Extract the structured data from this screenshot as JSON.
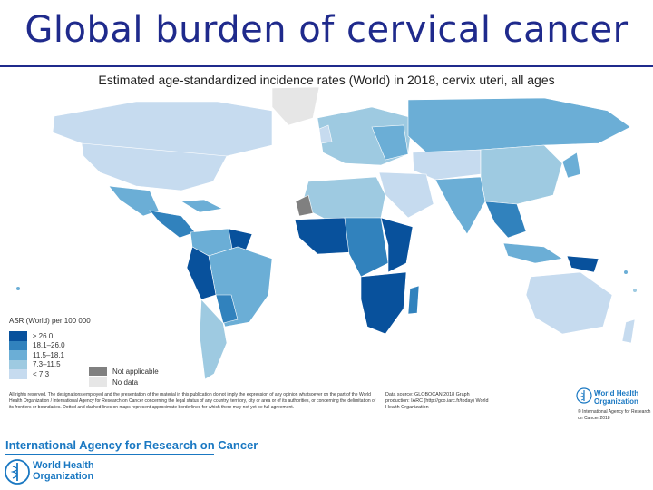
{
  "title": "Global burden of cervical cancer",
  "map": {
    "title": "Estimated age-standardized incidence rates (World) in 2018, cervix uteri, all ages",
    "legend_title": "ASR (World) per 100 000",
    "categories": [
      {
        "label": "≥ 26.0",
        "color": "#08519c"
      },
      {
        "label": "18.1–26.0",
        "color": "#3182bd"
      },
      {
        "label": "11.5–18.1",
        "color": "#6baed6"
      },
      {
        "label": "7.3–11.5",
        "color": "#9ecae1"
      },
      {
        "label": "< 7.3",
        "color": "#c6dbef"
      }
    ],
    "special_categories": [
      {
        "label": "Not applicable",
        "color": "#808080"
      },
      {
        "label": "No data",
        "color": "#e6e6e6"
      }
    ]
  },
  "disclaimer": "All rights reserved. The designations employed and the presentation of the material in this publication do not imply the expression of any opinion whatsoever on the part of the World Health Organization / International Agency for Research on Cancer concerning the legal status of any country, territory, city or area or of its authorities, or concerning the delimitation of its frontiers or boundaries. Dotted and dashed lines on maps represent approximate borderlines for which there may not yet be full agreement.",
  "source": "Data source: GLOBOCAN 2018 Graph production: IARC (http://gco.iarc.fr/today) World Health Organization",
  "who_name": "World Health Organization",
  "copyright": "© International Agency for Research on Cancer 2018",
  "iarc_name": "International Agency for Research on Cancer",
  "who_logo_name": "World Health Organization"
}
